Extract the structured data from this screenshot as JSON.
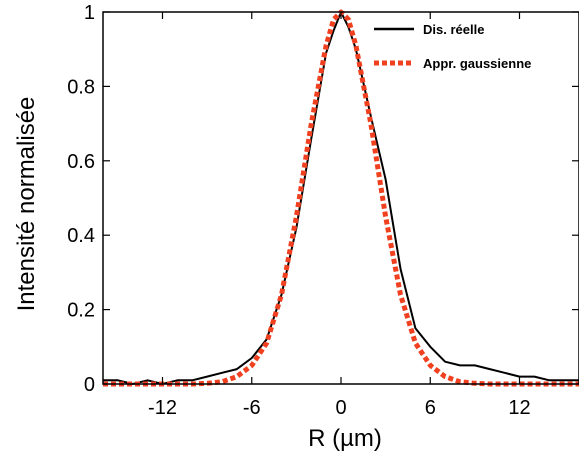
{
  "chart_data": {
    "type": "line",
    "title": "",
    "xlabel": "R (µm)",
    "ylabel": "Intensité normalisée",
    "xlim": [
      -16,
      16
    ],
    "ylim": [
      0,
      1
    ],
    "xticks": [
      -12,
      -6,
      0,
      6,
      12
    ],
    "xtick_labels": [
      "-12",
      "-6",
      "0",
      "6",
      "12"
    ],
    "yticks": [
      0,
      0.2,
      0.4,
      0.6,
      0.8,
      1
    ],
    "ytick_labels": [
      "0",
      "0.2",
      "0.4",
      "0.6",
      "0.8",
      "1"
    ],
    "grid": false,
    "legend_position": "top-right",
    "series": [
      {
        "name": "Dis. réelle",
        "color": "#000000",
        "style": "solid",
        "x": [
          -16,
          -15,
          -14,
          -13,
          -12,
          -11,
          -10,
          -9,
          -8,
          -7,
          -6,
          -5,
          -4,
          -3,
          -2,
          -1,
          -0.5,
          0,
          0.5,
          1,
          2,
          3,
          4,
          5,
          6,
          7,
          8,
          9,
          10,
          11,
          12,
          13,
          14,
          15,
          16
        ],
        "y": [
          0.01,
          0.01,
          0.0,
          0.01,
          0.0,
          0.01,
          0.01,
          0.02,
          0.03,
          0.04,
          0.07,
          0.12,
          0.24,
          0.42,
          0.66,
          0.89,
          0.95,
          1.0,
          0.96,
          0.9,
          0.72,
          0.55,
          0.31,
          0.15,
          0.1,
          0.06,
          0.05,
          0.05,
          0.04,
          0.03,
          0.02,
          0.02,
          0.01,
          0.01,
          0.01
        ]
      },
      {
        "name": "Appr. gaussienne",
        "color": "#f04020",
        "style": "dotted",
        "x": [
          -16,
          -15,
          -14,
          -13,
          -12,
          -11,
          -10,
          -9,
          -8,
          -7,
          -6,
          -5,
          -4,
          -3,
          -2,
          -1,
          -0.5,
          0,
          0.5,
          1,
          2,
          3,
          4,
          5,
          6,
          7,
          8,
          9,
          10,
          11,
          12,
          13,
          14,
          15,
          16
        ],
        "y": [
          0.0,
          0.0,
          0.0,
          0.0,
          0.0,
          0.0,
          0.0,
          0.002,
          0.006,
          0.02,
          0.05,
          0.11,
          0.24,
          0.45,
          0.7,
          0.91,
          0.98,
          1.0,
          0.98,
          0.91,
          0.7,
          0.45,
          0.24,
          0.11,
          0.05,
          0.02,
          0.006,
          0.002,
          0.0,
          0.0,
          0.0,
          0.0,
          0.0,
          0.0,
          0.0
        ]
      }
    ]
  }
}
